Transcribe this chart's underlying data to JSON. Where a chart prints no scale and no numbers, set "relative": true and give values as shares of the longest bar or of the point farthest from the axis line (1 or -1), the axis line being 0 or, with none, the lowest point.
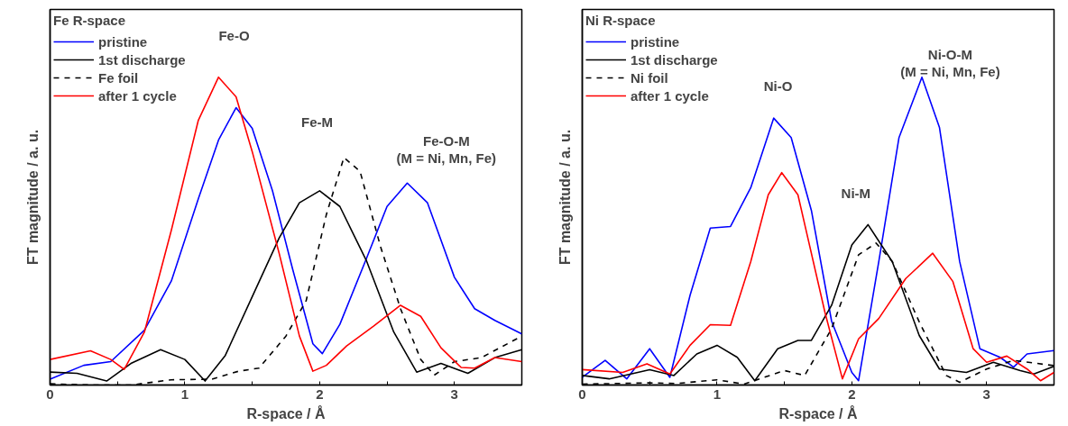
{
  "chart_data": [
    {
      "type": "line",
      "relative": true,
      "legend_title": "Fe R-space",
      "xlabel": "R-space / Å",
      "ylabel": "FT magnitude / a. u.",
      "xlim": [
        0,
        3.5
      ],
      "xticks": [
        0,
        {
          "value": 0.5,
          "label": null
        },
        1,
        {
          "value": 1.5,
          "label": null
        },
        2,
        {
          "value": 2.5,
          "label": null
        },
        3
      ],
      "legend": "top left",
      "grid": false,
      "tick_labels": "x",
      "annotations": [
        "Fe-O",
        "Fe-M",
        "Fe-O-M\n(M = Ni, Mn, Fe)"
      ],
      "series": [
        {
          "name": "pristine",
          "color": "#0000ff",
          "line_style": "solid",
          "x": [
            0,
            0.25,
            0.45,
            0.7,
            0.9,
            1.1,
            1.25,
            1.38,
            1.5,
            1.65,
            1.8,
            1.95,
            2.02,
            2.15,
            2.35,
            2.5,
            2.65,
            2.8,
            3.0,
            3.15,
            3.3,
            3.5
          ],
          "values": [
            0.019,
            0.064,
            0.076,
            0.178,
            0.338,
            0.605,
            0.796,
            0.901,
            0.834,
            0.631,
            0.376,
            0.134,
            0.102,
            0.197,
            0.414,
            0.58,
            0.656,
            0.592,
            0.35,
            0.248,
            0.21,
            0.166
          ]
        },
        {
          "name": "1st discharge",
          "color": "#000000",
          "line_style": "solid",
          "x": [
            0,
            0.2,
            0.42,
            0.6,
            0.82,
            1.0,
            1.15,
            1.3,
            1.5,
            1.7,
            1.85,
            2.0,
            2.15,
            2.35,
            2.55,
            2.72,
            2.9,
            3.1,
            3.3,
            3.5
          ],
          "values": [
            0.042,
            0.038,
            0.013,
            0.07,
            0.115,
            0.083,
            0.013,
            0.096,
            0.287,
            0.478,
            0.592,
            0.631,
            0.58,
            0.401,
            0.172,
            0.042,
            0.07,
            0.038,
            0.089,
            0.115
          ]
        },
        {
          "name": "Fe foil",
          "color": "#000000",
          "line_style": "dashed",
          "x": [
            0,
            0.3,
            0.6,
            0.9,
            1.2,
            1.4,
            1.55,
            1.75,
            1.9,
            2.05,
            2.18,
            2.3,
            2.45,
            2.6,
            2.75,
            2.85,
            3.0,
            3.2,
            3.5
          ],
          "values": [
            0.004,
            0,
            0,
            0.017,
            0.019,
            0.045,
            0.055,
            0.159,
            0.274,
            0.554,
            0.739,
            0.694,
            0.452,
            0.248,
            0.083,
            0.032,
            0.076,
            0.089,
            0.159
          ]
        },
        {
          "name": "after 1 cycle",
          "color": "#ff0000",
          "line_style": "solid",
          "x": [
            0,
            0.3,
            0.45,
            0.55,
            0.7,
            0.9,
            1.1,
            1.25,
            1.38,
            1.5,
            1.7,
            1.85,
            1.95,
            2.05,
            2.2,
            2.4,
            2.6,
            2.75,
            2.9,
            3.05,
            3.15,
            3.3,
            3.5
          ],
          "values": [
            0.083,
            0.111,
            0.083,
            0.051,
            0.172,
            0.503,
            0.86,
            1.0,
            0.936,
            0.758,
            0.427,
            0.159,
            0.045,
            0.064,
            0.127,
            0.191,
            0.259,
            0.223,
            0.121,
            0.057,
            0.055,
            0.089,
            0.076
          ]
        }
      ]
    },
    {
      "type": "line",
      "relative": true,
      "legend_title": "Ni R-space",
      "xlabel": "R-space / Å",
      "ylabel": "FT magnitude / a. u.",
      "xlim": [
        0,
        3.5
      ],
      "xticks": [
        0,
        {
          "value": 0.5,
          "label": null
        },
        1,
        {
          "value": 1.5,
          "label": null
        },
        2,
        {
          "value": 2.5,
          "label": null
        },
        3
      ],
      "legend": "top left",
      "grid": false,
      "tick_labels": "x",
      "annotations": [
        "Ni-O",
        "Ni-M",
        "Ni-O-M\n(M = Ni, Mn, Fe)"
      ],
      "series": [
        {
          "name": "pristine",
          "color": "#0000ff",
          "line_style": "solid",
          "x": [
            0,
            0.17,
            0.33,
            0.5,
            0.65,
            0.8,
            0.95,
            1.1,
            1.25,
            1.42,
            1.55,
            1.7,
            1.85,
            2.0,
            2.05,
            2.2,
            2.35,
            2.52,
            2.65,
            2.8,
            2.95,
            3.1,
            3.2,
            3.3,
            3.5
          ],
          "values": [
            0.025,
            0.08,
            0.02,
            0.118,
            0.025,
            0.292,
            0.51,
            0.515,
            0.641,
            0.867,
            0.804,
            0.567,
            0.207,
            0.041,
            0.014,
            0.401,
            0.804,
            1.0,
            0.837,
            0.401,
            0.118,
            0.09,
            0.058,
            0.101,
            0.112
          ]
        },
        {
          "name": "1st discharge",
          "color": "#000000",
          "line_style": "solid",
          "x": [
            0,
            0.2,
            0.5,
            0.68,
            0.85,
            1.0,
            1.15,
            1.28,
            1.45,
            1.6,
            1.7,
            1.85,
            2.0,
            2.12,
            2.3,
            2.5,
            2.65,
            2.85,
            3.05,
            3.25,
            3.35,
            3.5
          ],
          "values": [
            0.031,
            0.02,
            0.05,
            0.031,
            0.101,
            0.129,
            0.09,
            0.014,
            0.118,
            0.145,
            0.145,
            0.259,
            0.455,
            0.521,
            0.401,
            0.161,
            0.052,
            0.041,
            0.074,
            0.047,
            0.036,
            0.061
          ]
        },
        {
          "name": "Ni foil",
          "color": "#000000",
          "line_style": "dashed",
          "x": [
            0,
            0.5,
            0.7,
            1.0,
            1.2,
            1.5,
            1.65,
            1.85,
            2.05,
            2.18,
            2.3,
            2.5,
            2.7,
            2.8,
            3.0,
            3.2,
            3.5
          ],
          "values": [
            0.003,
            0.007,
            0.005,
            0.017,
            0.003,
            0.047,
            0.031,
            0.183,
            0.423,
            0.461,
            0.401,
            0.205,
            0.031,
            0.009,
            0.052,
            0.08,
            0.063
          ]
        },
        {
          "name": "after 1 cycle",
          "color": "#ff0000",
          "line_style": "solid",
          "x": [
            0,
            0.3,
            0.48,
            0.65,
            0.8,
            0.95,
            1.1,
            1.25,
            1.38,
            1.48,
            1.6,
            1.8,
            1.93,
            2.05,
            2.2,
            2.4,
            2.6,
            2.75,
            2.9,
            3.0,
            3.15,
            3.3,
            3.4,
            3.5
          ],
          "values": [
            0.05,
            0.041,
            0.069,
            0.036,
            0.129,
            0.196,
            0.194,
            0.401,
            0.618,
            0.69,
            0.618,
            0.237,
            0.02,
            0.15,
            0.216,
            0.346,
            0.428,
            0.336,
            0.118,
            0.074,
            0.094,
            0.052,
            0.014,
            0.041
          ]
        }
      ]
    }
  ]
}
